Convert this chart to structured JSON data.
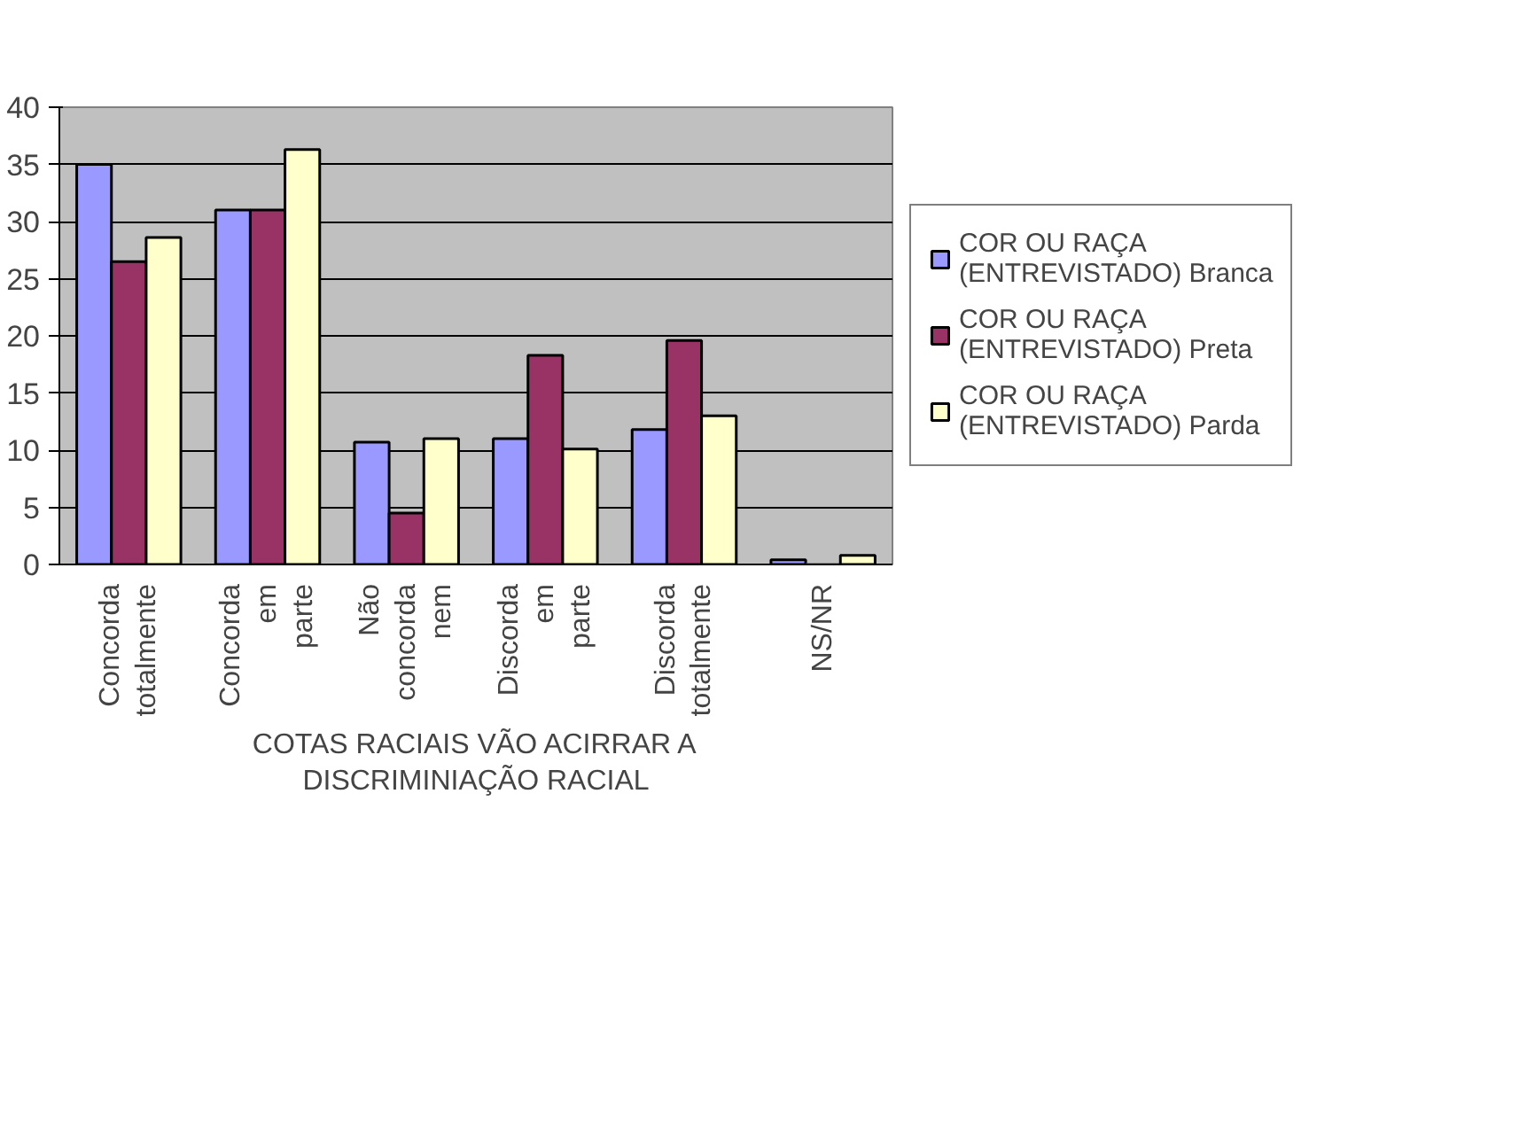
{
  "chart_data": {
    "type": "bar",
    "xlabel": "COTAS RACIAIS VÃO ACIRRAR A DISCRIMINIAÇÃO RACIAL",
    "categories": [
      "Concorda totalmente",
      "Concorda em parte",
      "Não concorda nem",
      "Discorda em parte",
      "Discorda totalmente",
      "NS/NR"
    ],
    "series": [
      {
        "name": "COR OU RAÇA (ENTREVISTADO) Branca",
        "color": "#9999ff",
        "values": [
          35,
          31,
          10.7,
          11,
          11.8,
          0.4
        ]
      },
      {
        "name": "COR OU RAÇA (ENTREVISTADO) Preta",
        "color": "#993366",
        "values": [
          26.5,
          31,
          4.5,
          18.3,
          19.6,
          0
        ]
      },
      {
        "name": "COR OU RAÇA (ENTREVISTADO) Parda",
        "color": "#ffffcc",
        "values": [
          28.6,
          36.3,
          11,
          10.1,
          13,
          0.8
        ]
      }
    ],
    "ylim": [
      0,
      40
    ],
    "yticks": [
      0,
      5,
      10,
      15,
      20,
      25,
      30,
      35,
      40
    ],
    "grid": "y",
    "legend": "right"
  }
}
